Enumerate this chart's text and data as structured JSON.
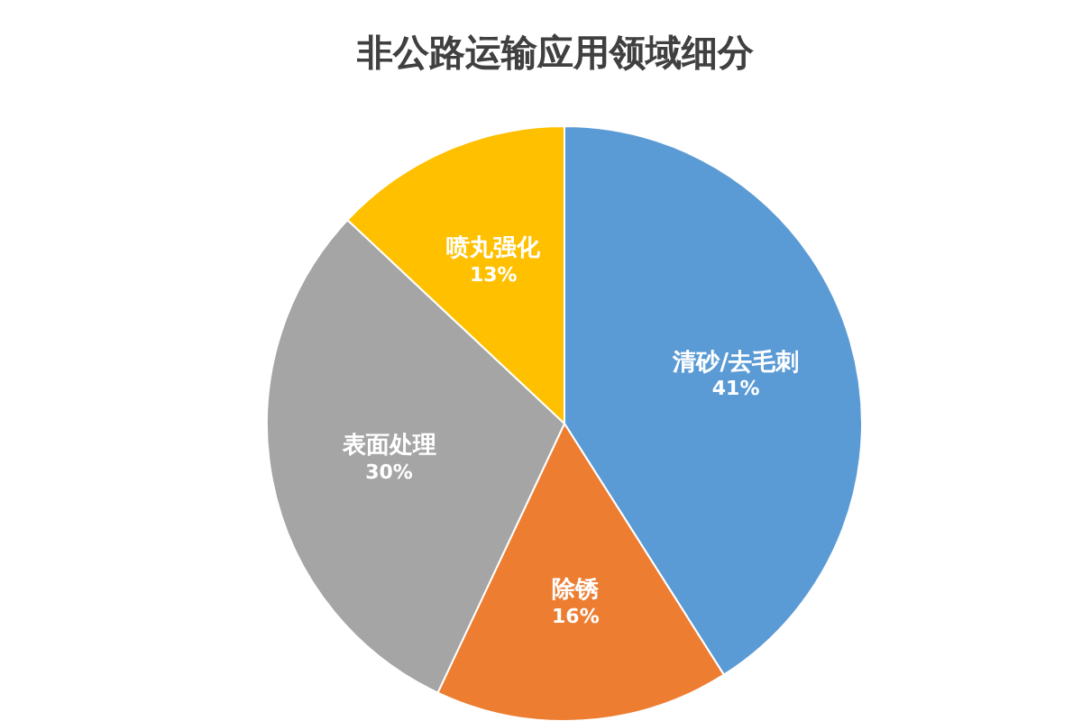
{
  "chart_data": {
    "type": "pie",
    "title": "非公路运输应用领域细分",
    "categories": [
      "清砂/去毛刺",
      "除锈",
      "表面处理",
      "喷丸强化"
    ],
    "values": [
      41,
      16,
      30,
      13
    ],
    "colors": [
      "#5b9bd5",
      "#ed7d31",
      "#a5a5a5",
      "#ffc000"
    ],
    "value_labels": [
      "41%",
      "16%",
      "30%",
      "13%"
    ],
    "legend": false
  }
}
